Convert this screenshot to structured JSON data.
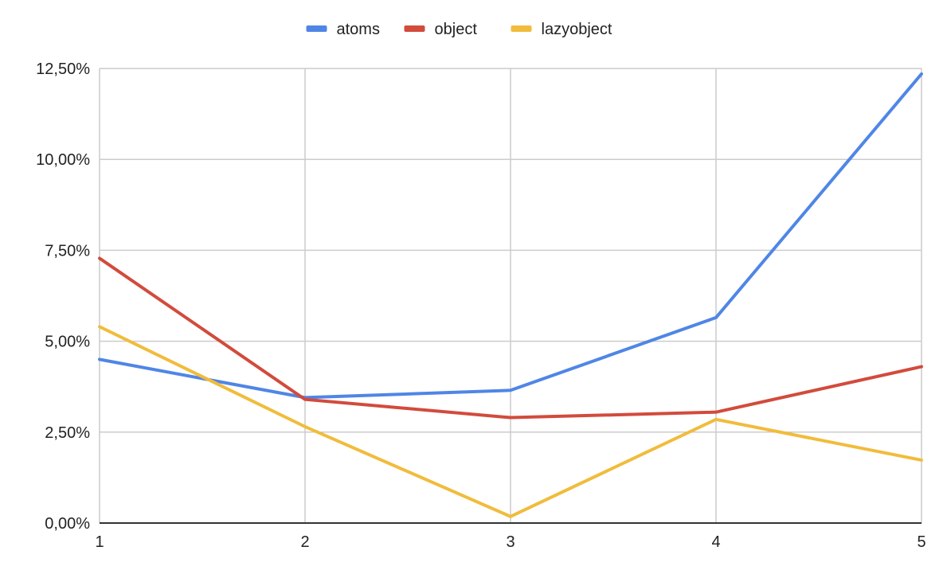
{
  "chart_data": {
    "type": "line",
    "x": [
      1,
      2,
      3,
      4,
      5
    ],
    "xticks": [
      "1",
      "2",
      "3",
      "4",
      "5"
    ],
    "xlim": [
      1,
      5
    ],
    "ylim": [
      0,
      12.5
    ],
    "yticks": [
      0,
      2.5,
      5,
      7.5,
      10,
      12.5
    ],
    "ytick_labels": [
      "0,00%",
      "2,50%",
      "5,00%",
      "7,50%",
      "10,00%",
      "12,50%"
    ],
    "title": "",
    "xlabel": "",
    "ylabel": "",
    "grid": true,
    "legend_position": "top-center",
    "series": [
      {
        "name": "atoms",
        "color": "#4f86e6",
        "values": [
          4.5,
          3.45,
          3.65,
          5.65,
          12.35
        ]
      },
      {
        "name": "object",
        "color": "#d24b3c",
        "values": [
          7.28,
          3.4,
          2.9,
          3.05,
          4.3
        ]
      },
      {
        "name": "lazyobject",
        "color": "#f1bc3c",
        "values": [
          5.4,
          2.65,
          0.18,
          2.85,
          1.73
        ]
      }
    ]
  }
}
